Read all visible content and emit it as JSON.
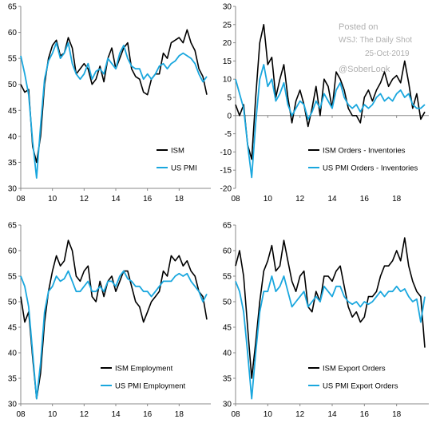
{
  "watermark": {
    "line1": "Posted on",
    "line2": "WSJ: The Daily Shot",
    "line3": "25-Oct-2019",
    "line4": "@SoberLook"
  },
  "colors": {
    "ism": "#000000",
    "pmi": "#1aa7de",
    "axis": "#888888",
    "watermark": "#b0b0b0"
  },
  "chart_data": [
    {
      "type": "line",
      "x_ticks": [
        "08",
        "10",
        "12",
        "14",
        "16",
        "18"
      ],
      "ylim": [
        30,
        65
      ],
      "y_ticks": [
        30,
        35,
        40,
        45,
        50,
        55,
        60,
        65
      ],
      "legend": "bottom-right",
      "grid": false,
      "series": [
        {
          "name": "ISM",
          "color": "#000000",
          "x": [
            2008.0,
            2008.25,
            2008.5,
            2008.75,
            2009.0,
            2009.25,
            2009.5,
            2009.75,
            2010.0,
            2010.25,
            2010.5,
            2010.75,
            2011.0,
            2011.25,
            2011.5,
            2011.75,
            2012.0,
            2012.25,
            2012.5,
            2012.75,
            2013.0,
            2013.25,
            2013.5,
            2013.75,
            2014.0,
            2014.25,
            2014.5,
            2014.75,
            2015.0,
            2015.25,
            2015.5,
            2015.75,
            2016.0,
            2016.25,
            2016.5,
            2016.75,
            2017.0,
            2017.25,
            2017.5,
            2017.75,
            2018.0,
            2018.25,
            2018.5,
            2018.75,
            2019.0,
            2019.25,
            2019.5,
            2019.75
          ],
          "y": [
            50.0,
            48.5,
            49.0,
            38.0,
            35.0,
            40.0,
            50.0,
            55.0,
            57.5,
            58.5,
            55.5,
            56.0,
            59.0,
            57.0,
            52.0,
            53.0,
            54.0,
            53.0,
            50.0,
            51.0,
            53.5,
            50.5,
            55.0,
            57.0,
            53.0,
            55.0,
            57.0,
            58.0,
            53.0,
            51.5,
            51.0,
            48.5,
            48.0,
            51.0,
            52.0,
            52.0,
            56.0,
            55.0,
            58.0,
            58.5,
            59.0,
            58.0,
            60.5,
            58.0,
            56.5,
            53.0,
            51.5,
            48.0
          ]
        },
        {
          "name": "US PMI",
          "color": "#1aa7de",
          "x": [
            2008.0,
            2008.25,
            2008.5,
            2008.75,
            2009.0,
            2009.25,
            2009.5,
            2009.75,
            2010.0,
            2010.25,
            2010.5,
            2010.75,
            2011.0,
            2011.25,
            2011.5,
            2011.75,
            2012.0,
            2012.25,
            2012.5,
            2012.75,
            2013.0,
            2013.25,
            2013.5,
            2013.75,
            2014.0,
            2014.25,
            2014.5,
            2014.75,
            2015.0,
            2015.25,
            2015.5,
            2015.75,
            2016.0,
            2016.25,
            2016.5,
            2016.75,
            2017.0,
            2017.25,
            2017.5,
            2017.75,
            2018.0,
            2018.25,
            2018.5,
            2018.75,
            2019.0,
            2019.25,
            2019.5,
            2019.75
          ],
          "y": [
            55.5,
            52.0,
            48.0,
            39.0,
            32.0,
            42.0,
            51.0,
            54.5,
            56.0,
            58.0,
            55.0,
            56.0,
            58.0,
            54.0,
            52.0,
            51.0,
            52.0,
            54.0,
            51.0,
            52.5,
            53.0,
            52.0,
            55.0,
            54.0,
            53.0,
            56.0,
            57.5,
            55.0,
            53.5,
            53.0,
            53.0,
            51.0,
            52.0,
            51.0,
            52.0,
            53.5,
            54.0,
            53.0,
            54.0,
            54.5,
            55.5,
            56.0,
            55.5,
            55.0,
            54.0,
            52.0,
            50.5,
            51.5
          ]
        }
      ]
    },
    {
      "type": "line",
      "x_ticks": [
        "08",
        "10",
        "12",
        "14",
        "16",
        "18"
      ],
      "ylim": [
        -20,
        30
      ],
      "y_ticks": [
        -20,
        -15,
        -10,
        -5,
        0,
        5,
        10,
        15,
        20,
        25,
        30
      ],
      "legend": "bottom-right",
      "grid": false,
      "series": [
        {
          "name": "ISM Orders - Inventories",
          "color": "#000000",
          "x": [
            2008.0,
            2008.25,
            2008.5,
            2008.75,
            2009.0,
            2009.25,
            2009.5,
            2009.75,
            2010.0,
            2010.25,
            2010.5,
            2010.75,
            2011.0,
            2011.25,
            2011.5,
            2011.75,
            2012.0,
            2012.25,
            2012.5,
            2012.75,
            2013.0,
            2013.25,
            2013.5,
            2013.75,
            2014.0,
            2014.25,
            2014.5,
            2014.75,
            2015.0,
            2015.25,
            2015.5,
            2015.75,
            2016.0,
            2016.25,
            2016.5,
            2016.75,
            2017.0,
            2017.25,
            2017.5,
            2017.75,
            2018.0,
            2018.25,
            2018.5,
            2018.75,
            2019.0,
            2019.25,
            2019.5,
            2019.75
          ],
          "y": [
            3.0,
            0.0,
            3.0,
            -8.0,
            -12.0,
            5.0,
            20.0,
            25.0,
            14.0,
            16.0,
            5.0,
            10.0,
            14.0,
            5.0,
            -2.0,
            4.0,
            7.0,
            3.0,
            -3.0,
            2.0,
            8.0,
            0.0,
            10.0,
            8.0,
            2.0,
            12.0,
            10.0,
            7.0,
            2.0,
            0.0,
            0.0,
            -2.0,
            5.0,
            7.0,
            4.0,
            7.0,
            9.0,
            12.0,
            8.0,
            10.0,
            11.0,
            9.0,
            15.0,
            9.0,
            2.0,
            6.0,
            -1.0,
            1.0
          ]
        },
        {
          "name": "US PMI Orders - Inventories",
          "color": "#1aa7de",
          "x": [
            2008.0,
            2008.25,
            2008.5,
            2008.75,
            2009.0,
            2009.25,
            2009.5,
            2009.75,
            2010.0,
            2010.25,
            2010.5,
            2010.75,
            2011.0,
            2011.25,
            2011.5,
            2011.75,
            2012.0,
            2012.25,
            2012.5,
            2012.75,
            2013.0,
            2013.25,
            2013.5,
            2013.75,
            2014.0,
            2014.25,
            2014.5,
            2014.75,
            2015.0,
            2015.25,
            2015.5,
            2015.75,
            2016.0,
            2016.25,
            2016.5,
            2016.75,
            2017.0,
            2017.25,
            2017.5,
            2017.75,
            2018.0,
            2018.25,
            2018.5,
            2018.75,
            2019.0,
            2019.25,
            2019.5,
            2019.75
          ],
          "y": [
            10.0,
            6.0,
            2.0,
            -8.0,
            -17.0,
            -2.0,
            10.0,
            14.0,
            8.0,
            10.0,
            4.0,
            6.0,
            9.0,
            3.0,
            0.0,
            2.0,
            4.0,
            3.0,
            -1.0,
            1.0,
            4.0,
            2.0,
            6.0,
            4.0,
            2.0,
            7.0,
            9.0,
            5.0,
            3.0,
            2.0,
            3.0,
            1.0,
            3.0,
            2.0,
            3.0,
            5.0,
            6.0,
            4.0,
            5.0,
            4.0,
            6.0,
            7.0,
            5.0,
            6.0,
            3.0,
            2.0,
            2.0,
            3.0
          ]
        }
      ]
    },
    {
      "type": "line",
      "x_ticks": [
        "08",
        "10",
        "12",
        "14",
        "16",
        "18"
      ],
      "ylim": [
        30,
        65
      ],
      "y_ticks": [
        30,
        35,
        40,
        45,
        50,
        55,
        60,
        65
      ],
      "legend": "bottom-right",
      "grid": false,
      "series": [
        {
          "name": "ISM Employment",
          "color": "#000000",
          "x": [
            2008.0,
            2008.25,
            2008.5,
            2008.75,
            2009.0,
            2009.25,
            2009.5,
            2009.75,
            2010.0,
            2010.25,
            2010.5,
            2010.75,
            2011.0,
            2011.25,
            2011.5,
            2011.75,
            2012.0,
            2012.25,
            2012.5,
            2012.75,
            2013.0,
            2013.25,
            2013.5,
            2013.75,
            2014.0,
            2014.25,
            2014.5,
            2014.75,
            2015.0,
            2015.25,
            2015.5,
            2015.75,
            2016.0,
            2016.25,
            2016.5,
            2016.75,
            2017.0,
            2017.25,
            2017.5,
            2017.75,
            2018.0,
            2018.25,
            2018.5,
            2018.75,
            2019.0,
            2019.25,
            2019.5,
            2019.75
          ],
          "y": [
            51.0,
            46.0,
            48.0,
            39.0,
            31.0,
            36.0,
            46.0,
            52.0,
            56.0,
            59.0,
            57.0,
            58.0,
            62.0,
            60.0,
            55.0,
            54.0,
            56.0,
            57.0,
            51.0,
            50.0,
            54.0,
            51.0,
            54.0,
            55.0,
            52.0,
            54.0,
            56.0,
            56.0,
            53.0,
            50.0,
            49.0,
            46.0,
            48.0,
            50.0,
            51.0,
            52.0,
            56.0,
            55.0,
            59.0,
            58.0,
            59.0,
            57.0,
            58.0,
            56.0,
            55.0,
            52.0,
            51.0,
            46.5
          ]
        },
        {
          "name": "US PMI Employment",
          "color": "#1aa7de",
          "x": [
            2008.0,
            2008.25,
            2008.5,
            2008.75,
            2009.0,
            2009.25,
            2009.5,
            2009.75,
            2010.0,
            2010.25,
            2010.5,
            2010.75,
            2011.0,
            2011.25,
            2011.5,
            2011.75,
            2012.0,
            2012.25,
            2012.5,
            2012.75,
            2013.0,
            2013.25,
            2013.5,
            2013.75,
            2014.0,
            2014.25,
            2014.5,
            2014.75,
            2015.0,
            2015.25,
            2015.5,
            2015.75,
            2016.0,
            2016.25,
            2016.5,
            2016.75,
            2017.0,
            2017.25,
            2017.5,
            2017.75,
            2018.0,
            2018.25,
            2018.5,
            2018.75,
            2019.0,
            2019.25,
            2019.5,
            2019.75
          ],
          "y": [
            55.0,
            53.0,
            49.0,
            40.0,
            31.0,
            38.0,
            48.0,
            52.0,
            53.0,
            55.0,
            54.0,
            54.5,
            56.0,
            54.0,
            52.0,
            52.0,
            53.0,
            54.0,
            52.0,
            52.0,
            53.0,
            52.0,
            54.0,
            54.0,
            53.0,
            55.0,
            56.0,
            54.5,
            54.0,
            53.0,
            53.0,
            52.0,
            52.0,
            51.0,
            52.0,
            53.0,
            54.0,
            54.0,
            54.0,
            55.0,
            55.5,
            55.0,
            55.5,
            54.0,
            53.0,
            52.0,
            50.0,
            51.5
          ]
        }
      ]
    },
    {
      "type": "line",
      "x_ticks": [
        "08",
        "10",
        "12",
        "14",
        "16",
        "18"
      ],
      "ylim": [
        30,
        65
      ],
      "y_ticks": [
        30,
        35,
        40,
        45,
        50,
        55,
        60,
        65
      ],
      "legend": "bottom-right",
      "grid": false,
      "series": [
        {
          "name": "ISM Export Orders",
          "color": "#000000",
          "x": [
            2008.0,
            2008.25,
            2008.5,
            2008.75,
            2009.0,
            2009.25,
            2009.5,
            2009.75,
            2010.0,
            2010.25,
            2010.5,
            2010.75,
            2011.0,
            2011.25,
            2011.5,
            2011.75,
            2012.0,
            2012.25,
            2012.5,
            2012.75,
            2013.0,
            2013.25,
            2013.5,
            2013.75,
            2014.0,
            2014.25,
            2014.5,
            2014.75,
            2015.0,
            2015.25,
            2015.5,
            2015.75,
            2016.0,
            2016.25,
            2016.5,
            2016.75,
            2017.0,
            2017.25,
            2017.5,
            2017.75,
            2018.0,
            2018.25,
            2018.5,
            2018.75,
            2019.0,
            2019.25,
            2019.5,
            2019.75
          ],
          "y": [
            57.0,
            60.0,
            55.0,
            45.0,
            35.0,
            42.0,
            50.0,
            56.0,
            58.0,
            61.0,
            56.0,
            57.0,
            62.0,
            58.0,
            54.0,
            52.0,
            55.0,
            56.0,
            49.0,
            48.0,
            52.0,
            50.0,
            55.0,
            55.0,
            54.0,
            56.0,
            57.0,
            53.0,
            49.0,
            47.0,
            48.0,
            46.0,
            47.0,
            51.0,
            51.0,
            52.0,
            55.0,
            57.0,
            57.0,
            58.0,
            60.0,
            58.0,
            62.5,
            57.0,
            54.0,
            52.0,
            51.0,
            41.0
          ]
        },
        {
          "name": "US PMI Export Orders",
          "color": "#1aa7de",
          "x": [
            2008.0,
            2008.25,
            2008.5,
            2008.75,
            2009.0,
            2009.25,
            2009.5,
            2009.75,
            2010.0,
            2010.25,
            2010.5,
            2010.75,
            2011.0,
            2011.25,
            2011.5,
            2011.75,
            2012.0,
            2012.25,
            2012.5,
            2012.75,
            2013.0,
            2013.25,
            2013.5,
            2013.75,
            2014.0,
            2014.25,
            2014.5,
            2014.75,
            2015.0,
            2015.25,
            2015.5,
            2015.75,
            2016.0,
            2016.25,
            2016.5,
            2016.75,
            2017.0,
            2017.25,
            2017.5,
            2017.75,
            2018.0,
            2018.25,
            2018.5,
            2018.75,
            2019.0,
            2019.25,
            2019.5,
            2019.75
          ],
          "y": [
            54.0,
            52.0,
            48.0,
            40.0,
            31.0,
            40.0,
            48.0,
            52.0,
            52.0,
            55.0,
            52.0,
            53.0,
            55.0,
            52.0,
            49.0,
            50.0,
            51.0,
            52.0,
            49.0,
            50.0,
            51.0,
            50.0,
            53.0,
            52.0,
            51.0,
            53.0,
            53.0,
            51.0,
            50.0,
            49.5,
            50.0,
            49.0,
            50.0,
            49.5,
            50.0,
            51.0,
            52.0,
            51.0,
            52.0,
            52.0,
            53.0,
            52.0,
            52.5,
            51.0,
            50.0,
            50.5,
            46.0,
            51.0
          ]
        }
      ]
    }
  ]
}
